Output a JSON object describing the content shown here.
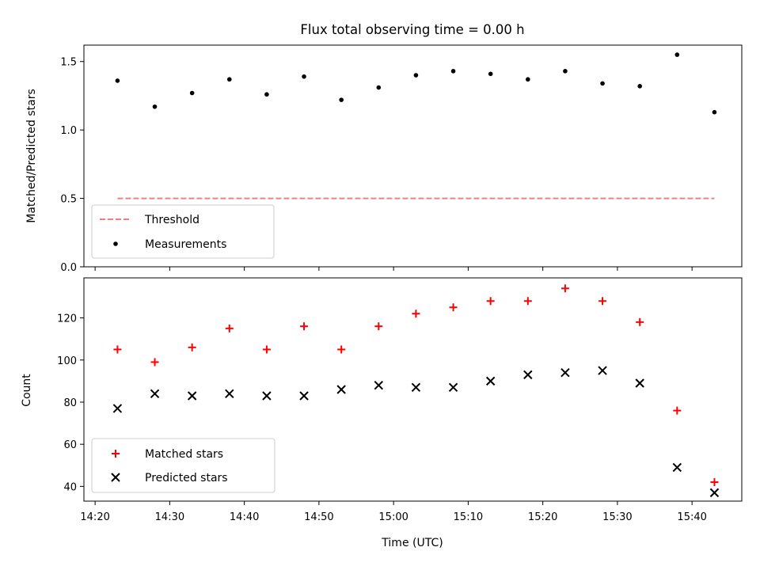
{
  "chart_data": [
    {
      "type": "scatter",
      "title": "Flux total observing time = 0.00 h",
      "xlabel": "",
      "ylabel": "Matched/Predicted stars",
      "xlim": [
        "14:18:30",
        "15:46:40"
      ],
      "ylim": [
        0.0,
        1.62
      ],
      "yticks": [
        0.0,
        0.5,
        1.0,
        1.5
      ],
      "ytick_labels": [
        "0.0",
        "0.5",
        "1.0",
        "1.5"
      ],
      "grid": false,
      "legend_position": "lower-left",
      "series": [
        {
          "name": "Measurements",
          "kind": "point",
          "color": "#000000",
          "x": [
            "14:23",
            "14:28",
            "14:33",
            "14:38",
            "14:43",
            "14:48",
            "14:53",
            "14:58",
            "15:03",
            "15:08",
            "15:13",
            "15:18",
            "15:23",
            "15:28",
            "15:33",
            "15:38",
            "15:43"
          ],
          "y": [
            1.36,
            1.17,
            1.27,
            1.37,
            1.26,
            1.39,
            1.22,
            1.31,
            1.4,
            1.43,
            1.41,
            1.37,
            1.43,
            1.34,
            1.32,
            1.55,
            1.13
          ]
        },
        {
          "name": "Threshold",
          "kind": "dashed-line",
          "color": "#f08080",
          "x": [
            "14:23",
            "15:43"
          ],
          "y": [
            0.5,
            0.5
          ]
        }
      ]
    },
    {
      "type": "scatter",
      "title": "",
      "xlabel": "Time (UTC)",
      "ylabel": "Count",
      "xlim": [
        "14:18:30",
        "15:46:40"
      ],
      "ylim": [
        33,
        139
      ],
      "yticks": [
        40,
        60,
        80,
        100,
        120
      ],
      "ytick_labels": [
        "40",
        "60",
        "80",
        "100",
        "120"
      ],
      "xticks": [
        "14:20",
        "14:30",
        "14:40",
        "14:50",
        "15:00",
        "15:10",
        "15:20",
        "15:30",
        "15:40"
      ],
      "xtick_labels": [
        "14:20",
        "14:30",
        "14:40",
        "14:50",
        "15:00",
        "15:10",
        "15:20",
        "15:30",
        "15:40"
      ],
      "grid": false,
      "legend_position": "lower-left",
      "series": [
        {
          "name": "Matched stars",
          "kind": "plus",
          "color": "#ff0000",
          "x": [
            "14:23",
            "14:28",
            "14:33",
            "14:38",
            "14:43",
            "14:48",
            "14:53",
            "14:58",
            "15:03",
            "15:08",
            "15:13",
            "15:18",
            "15:23",
            "15:28",
            "15:33",
            "15:38",
            "15:43"
          ],
          "y": [
            105,
            99,
            106,
            115,
            105,
            116,
            105,
            116,
            122,
            125,
            128,
            128,
            134,
            128,
            118,
            76,
            42
          ]
        },
        {
          "name": "Predicted stars",
          "kind": "cross",
          "color": "#000000",
          "x": [
            "14:23",
            "14:28",
            "14:33",
            "14:38",
            "14:43",
            "14:48",
            "14:53",
            "14:58",
            "15:03",
            "15:08",
            "15:13",
            "15:18",
            "15:23",
            "15:28",
            "15:33",
            "15:38",
            "15:43"
          ],
          "y": [
            77,
            84,
            83,
            84,
            83,
            83,
            86,
            88,
            87,
            87,
            90,
            93,
            94,
            95,
            89,
            49,
            37
          ]
        }
      ]
    }
  ]
}
